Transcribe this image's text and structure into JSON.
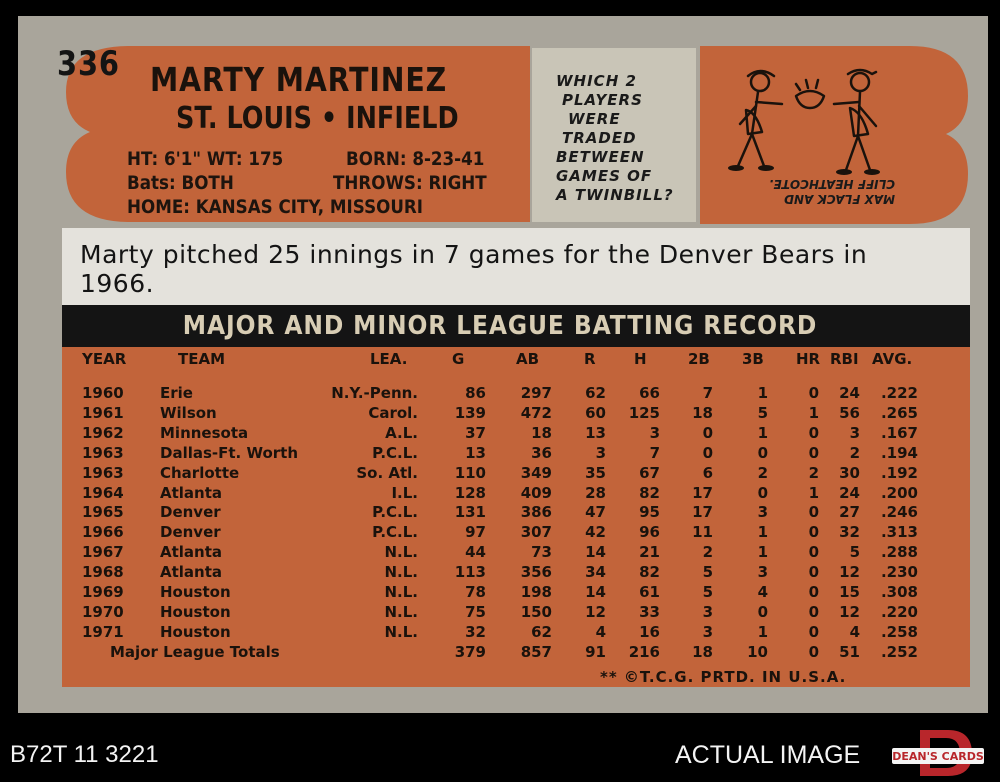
{
  "card": {
    "number": "336",
    "player_name": "MARTY MARTINEZ",
    "team_position": "ST. LOUIS • INFIELD",
    "bio": {
      "height_weight": "HT: 6'1\" WT: 175",
      "born": "BORN: 8-23-41",
      "bats": "Bats: BOTH",
      "throws": "THROWS: RIGHT",
      "home": "HOME: KANSAS CITY, MISSOURI"
    },
    "quiz": {
      "lines": [
        "WHICH 2",
        "PLAYERS",
        "WERE",
        "TRADED",
        "BETWEEN",
        "GAMES OF",
        "A TWINBILL?"
      ]
    },
    "quiz_answer": {
      "line1": "MAX FLACK AND",
      "line2": "CLIFF HEATHCOTE."
    },
    "blurb": "Marty pitched 25 innings in 7 games for the Denver Bears in 1966.",
    "section_title": "MAJOR AND MINOR LEAGUE BATTING RECORD",
    "columns": [
      "YEAR",
      "TEAM",
      "LEA.",
      "G",
      "AB",
      "R",
      "H",
      "2B",
      "3B",
      "HR",
      "RBI",
      "AVG."
    ],
    "rows": [
      {
        "year": "1960",
        "team": "Erie",
        "lea": "N.Y.-Penn.",
        "g": "86",
        "ab": "297",
        "r": "62",
        "h": "66",
        "b2": "7",
        "b3": "1",
        "hr": "0",
        "rbi": "24",
        "avg": ".222"
      },
      {
        "year": "1961",
        "team": "Wilson",
        "lea": "Carol.",
        "g": "139",
        "ab": "472",
        "r": "60",
        "h": "125",
        "b2": "18",
        "b3": "5",
        "hr": "1",
        "rbi": "56",
        "avg": ".265"
      },
      {
        "year": "1962",
        "team": "Minnesota",
        "lea": "A.L.",
        "g": "37",
        "ab": "18",
        "r": "13",
        "h": "3",
        "b2": "0",
        "b3": "1",
        "hr": "0",
        "rbi": "3",
        "avg": ".167"
      },
      {
        "year": "1963",
        "team": "Dallas-Ft. Worth",
        "lea": "P.C.L.",
        "g": "13",
        "ab": "36",
        "r": "3",
        "h": "7",
        "b2": "0",
        "b3": "0",
        "hr": "0",
        "rbi": "2",
        "avg": ".194"
      },
      {
        "year": "1963",
        "team": "Charlotte",
        "lea": "So. Atl.",
        "g": "110",
        "ab": "349",
        "r": "35",
        "h": "67",
        "b2": "6",
        "b3": "2",
        "hr": "2",
        "rbi": "30",
        "avg": ".192"
      },
      {
        "year": "1964",
        "team": "Atlanta",
        "lea": "I.L.",
        "g": "128",
        "ab": "409",
        "r": "28",
        "h": "82",
        "b2": "17",
        "b3": "0",
        "hr": "1",
        "rbi": "24",
        "avg": ".200"
      },
      {
        "year": "1965",
        "team": "Denver",
        "lea": "P.C.L.",
        "g": "131",
        "ab": "386",
        "r": "47",
        "h": "95",
        "b2": "17",
        "b3": "3",
        "hr": "0",
        "rbi": "27",
        "avg": ".246"
      },
      {
        "year": "1966",
        "team": "Denver",
        "lea": "P.C.L.",
        "g": "97",
        "ab": "307",
        "r": "42",
        "h": "96",
        "b2": "11",
        "b3": "1",
        "hr": "0",
        "rbi": "32",
        "avg": ".313"
      },
      {
        "year": "1967",
        "team": "Atlanta",
        "lea": "N.L.",
        "g": "44",
        "ab": "73",
        "r": "14",
        "h": "21",
        "b2": "2",
        "b3": "1",
        "hr": "0",
        "rbi": "5",
        "avg": ".288"
      },
      {
        "year": "1968",
        "team": "Atlanta",
        "lea": "N.L.",
        "g": "113",
        "ab": "356",
        "r": "34",
        "h": "82",
        "b2": "5",
        "b3": "3",
        "hr": "0",
        "rbi": "12",
        "avg": ".230"
      },
      {
        "year": "1969",
        "team": "Houston",
        "lea": "N.L.",
        "g": "78",
        "ab": "198",
        "r": "14",
        "h": "61",
        "b2": "5",
        "b3": "4",
        "hr": "0",
        "rbi": "15",
        "avg": ".308"
      },
      {
        "year": "1970",
        "team": "Houston",
        "lea": "N.L.",
        "g": "75",
        "ab": "150",
        "r": "12",
        "h": "33",
        "b2": "3",
        "b3": "0",
        "hr": "0",
        "rbi": "12",
        "avg": ".220"
      },
      {
        "year": "1971",
        "team": "Houston",
        "lea": "N.L.",
        "g": "32",
        "ab": "62",
        "r": "4",
        "h": "16",
        "b2": "3",
        "b3": "1",
        "hr": "0",
        "rbi": "4",
        "avg": ".258"
      }
    ],
    "totals": {
      "label": "Major League Totals",
      "g": "379",
      "ab": "857",
      "r": "91",
      "h": "216",
      "b2": "18",
      "b3": "10",
      "hr": "0",
      "rbi": "51",
      "avg": ".252"
    },
    "footer": "** ©T.C.G. PRTD. IN U.S.A."
  },
  "overlay": {
    "inventory_code": "B72T 11 3221",
    "actual_image_label": "ACTUAL IMAGE",
    "logo_text": "DEAN'S CARDS"
  },
  "colors": {
    "card_gray": "#a9a59b",
    "orange": "#c2643a",
    "header_black": "#141414"
  }
}
